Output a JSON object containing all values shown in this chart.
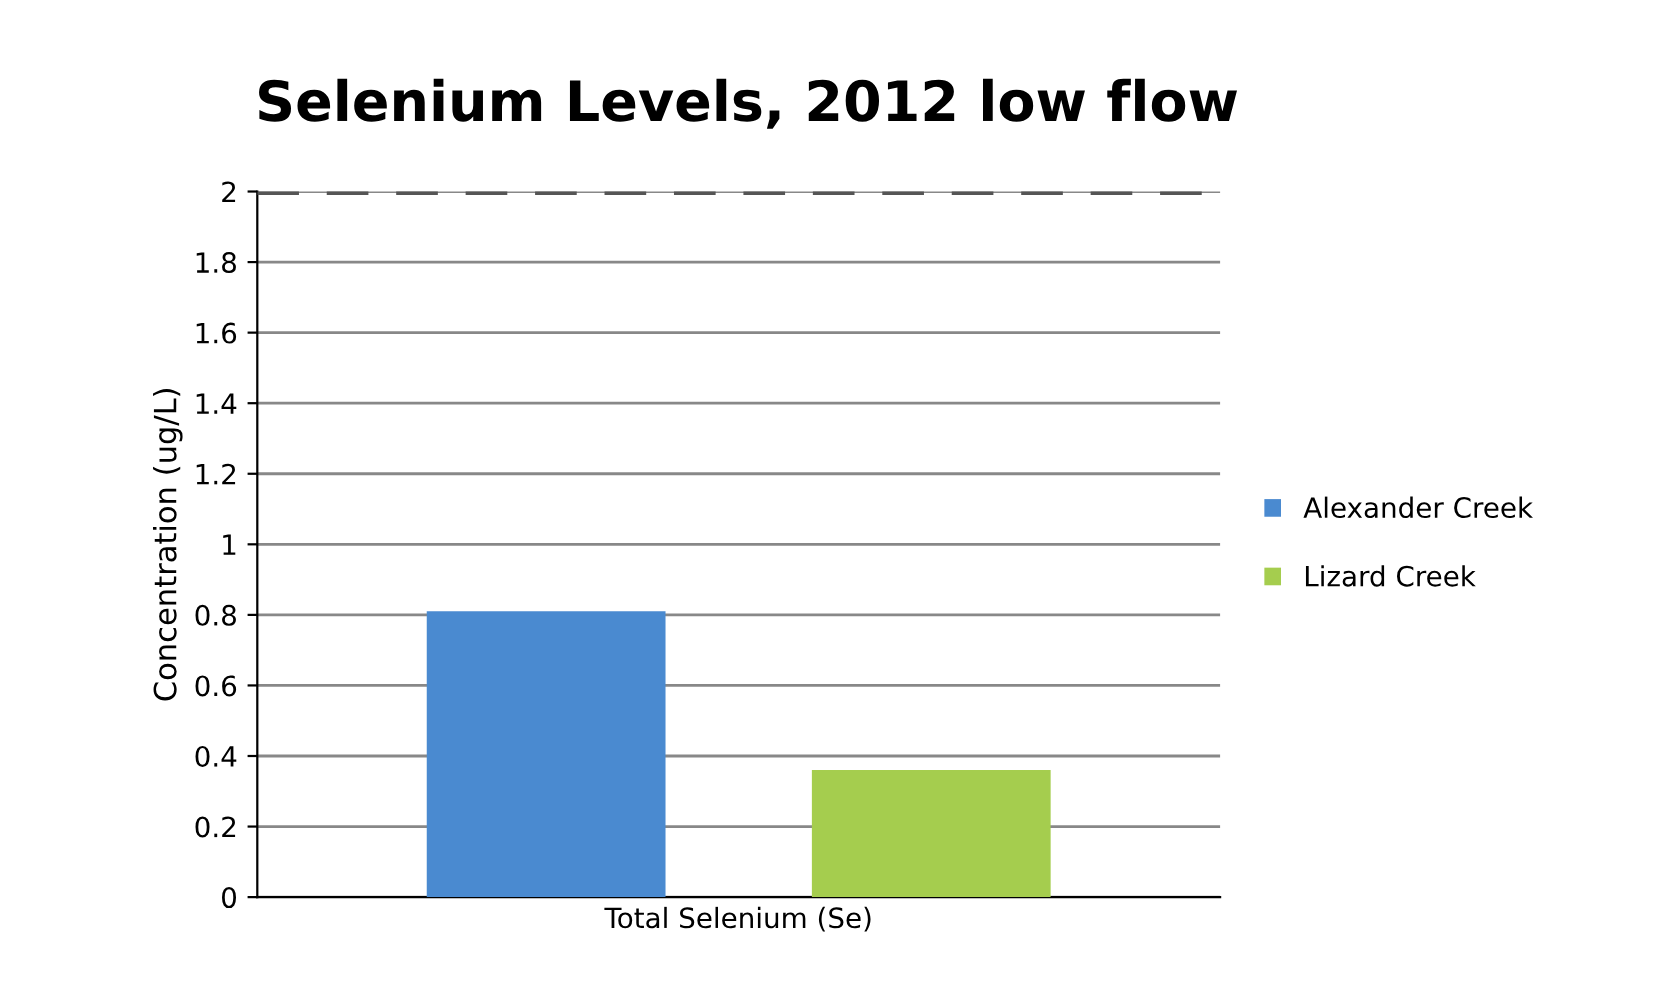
{
  "chart_data": {
    "type": "bar",
    "title": "Selenium Levels, 2012 low flow",
    "ylabel": "Concentration (ug/L)",
    "categories": [
      "Total Selenium (Se)"
    ],
    "series": [
      {
        "name": "Alexander Creek",
        "color": "#4a8ad0",
        "values": [
          0.81
        ]
      },
      {
        "name": "Lizard Creek",
        "color": "#a5cd4e",
        "values": [
          0.36
        ]
      }
    ],
    "ylim": [
      0,
      2
    ],
    "yticks": [
      0,
      0.2,
      0.4,
      0.6,
      0.8,
      1,
      1.2,
      1.4,
      1.6,
      1.8,
      2
    ],
    "ref_lines": [
      {
        "axis": "y",
        "value": 2,
        "color": "#555555",
        "line_style": "dashed"
      }
    ],
    "grid": "y",
    "legend": "right"
  }
}
